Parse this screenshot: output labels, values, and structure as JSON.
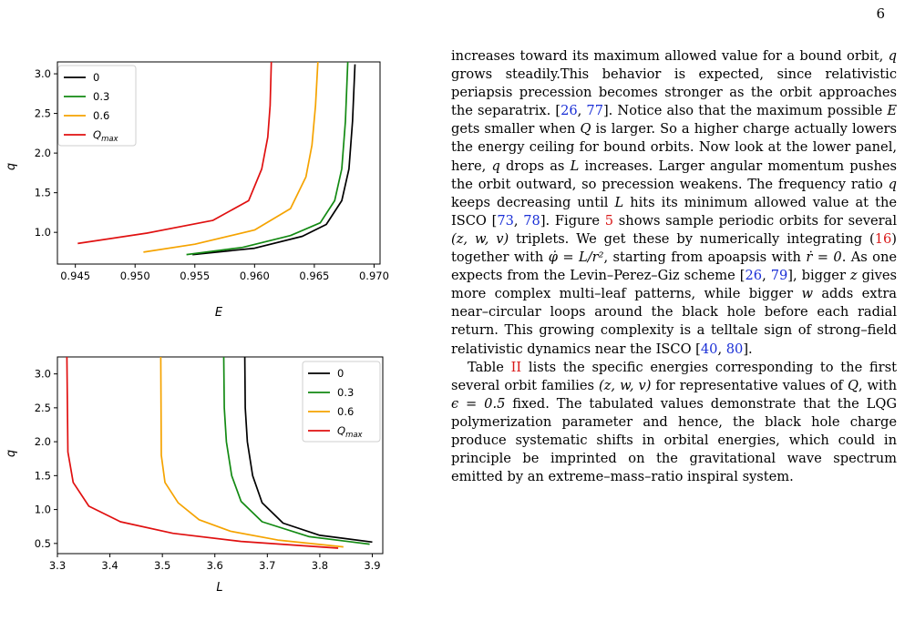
{
  "page_number": "6",
  "figures": {
    "legend_labels": [
      "0",
      "0.3",
      "0.6",
      "Q_max"
    ],
    "colors": {
      "0": "#000000",
      "0.3": "#138a13",
      "0.6": "#f5a300",
      "Q_max": "#e01010"
    }
  },
  "chart_data": [
    {
      "type": "line",
      "xlabel": "E",
      "ylabel": "q",
      "xlim": [
        0.9435,
        0.9705
      ],
      "ylim": [
        0.6,
        3.15
      ],
      "xticks": [
        0.945,
        0.95,
        0.955,
        0.96,
        0.965,
        0.97
      ],
      "xtick_labels": [
        "0.945",
        "0.950",
        "0.955",
        "0.960",
        "0.965",
        "0.970"
      ],
      "yticks": [
        1.0,
        1.5,
        2.0,
        2.5,
        3.0
      ],
      "ytick_labels": [
        "1.0",
        "1.5",
        "2.0",
        "2.5",
        "3.0"
      ],
      "legend": "top-left",
      "series": [
        {
          "name": "0",
          "color": "#000000",
          "x": [
            0.9548,
            0.96,
            0.964,
            0.966,
            0.9673,
            0.9679,
            0.9682,
            0.9684
          ],
          "y": [
            0.72,
            0.8,
            0.95,
            1.1,
            1.4,
            1.8,
            2.4,
            3.12
          ]
        },
        {
          "name": "0.3",
          "color": "#138a13",
          "x": [
            0.9543,
            0.959,
            0.963,
            0.9655,
            0.9667,
            0.9673,
            0.9676,
            0.9678
          ],
          "y": [
            0.72,
            0.81,
            0.96,
            1.12,
            1.4,
            1.8,
            2.4,
            3.15
          ]
        },
        {
          "name": "0.6",
          "color": "#f5a300",
          "x": [
            0.9507,
            0.955,
            0.96,
            0.963,
            0.9643,
            0.9648,
            0.9651,
            0.9653
          ],
          "y": [
            0.75,
            0.85,
            1.03,
            1.3,
            1.7,
            2.1,
            2.6,
            3.15
          ]
        },
        {
          "name": "Q_max",
          "color": "#e01010",
          "x": [
            0.9452,
            0.951,
            0.9565,
            0.9595,
            0.9606,
            0.9611,
            0.9613,
            0.9614
          ],
          "y": [
            0.86,
            0.99,
            1.15,
            1.4,
            1.8,
            2.2,
            2.6,
            3.15
          ]
        }
      ]
    },
    {
      "type": "line",
      "xlabel": "L",
      "ylabel": "q",
      "xlim": [
        3.3,
        3.92
      ],
      "ylim": [
        0.35,
        3.25
      ],
      "xticks": [
        3.3,
        3.4,
        3.5,
        3.6,
        3.7,
        3.8,
        3.9
      ],
      "xtick_labels": [
        "3.3",
        "3.4",
        "3.5",
        "3.6",
        "3.7",
        "3.8",
        "3.9"
      ],
      "yticks": [
        0.5,
        1.0,
        1.5,
        2.0,
        2.5,
        3.0
      ],
      "ytick_labels": [
        "0.5",
        "1.0",
        "1.5",
        "2.0",
        "2.5",
        "3.0"
      ],
      "legend": "top-right",
      "series": [
        {
          "name": "0",
          "color": "#000000",
          "x": [
            3.657,
            3.658,
            3.662,
            3.672,
            3.69,
            3.73,
            3.8,
            3.9
          ],
          "y": [
            3.25,
            2.5,
            2.0,
            1.5,
            1.1,
            0.8,
            0.62,
            0.52
          ]
        },
        {
          "name": "0.3",
          "color": "#138a13",
          "x": [
            3.617,
            3.618,
            3.622,
            3.632,
            3.65,
            3.69,
            3.78,
            3.895
          ],
          "y": [
            3.25,
            2.5,
            2.0,
            1.5,
            1.12,
            0.82,
            0.6,
            0.49
          ]
        },
        {
          "name": "0.6",
          "color": "#f5a300",
          "x": [
            3.497,
            3.498,
            3.505,
            3.53,
            3.57,
            3.63,
            3.72,
            3.845
          ],
          "y": [
            3.25,
            1.8,
            1.4,
            1.1,
            0.85,
            0.68,
            0.55,
            0.45
          ]
        },
        {
          "name": "Q_max",
          "color": "#e01010",
          "x": [
            3.318,
            3.32,
            3.33,
            3.36,
            3.42,
            3.52,
            3.65,
            3.835
          ],
          "y": [
            3.25,
            1.85,
            1.4,
            1.05,
            0.82,
            0.65,
            0.53,
            0.43
          ]
        }
      ]
    }
  ],
  "text": {
    "p1": {
      "t1": "increases toward its maximum allowed value for a bound orbit, ",
      "t2": " grows steadily.This behavior is expected, since relativistic periapsis precession becomes stronger as the orbit approaches the separatrix. [",
      "t3": ", ",
      "t4": "]. Notice also that the maximum possible ",
      "t5": " gets smaller when ",
      "t6": " is larger. So a higher charge actually lowers the energy ceiling for bound orbits. Now look at the lower panel, here, ",
      "t7": " drops as ",
      "t8": " increases. Larger angular momentum pushes the orbit outward, so precession weakens. The frequency ratio ",
      "t9": " keeps decreasing until ",
      "t10": " hits its minimum allowed value at the ISCO [",
      "t11": ", ",
      "t12": "]. Figure ",
      "t13": " shows sample periodic orbits for several ",
      "t14": " triplets. We get these by numerically integrating (",
      "t15": ") together with ",
      "t16": ", starting from apoapsis with ",
      "t17": ". As one expects from the Levin–Perez–Giz scheme [",
      "t18": ", ",
      "t19": "], bigger ",
      "t20": " gives more complex multi–leaf patterns, while bigger ",
      "t21": " adds extra near–circular loops around the black hole before each radial return. This growing complexity is a telltale sign of strong–field relativistic dynamics near the ISCO [",
      "t22": ", ",
      "t23": "]."
    },
    "p2": {
      "t1": "Table ",
      "t2": " lists the specific energies corresponding to the first several orbit families ",
      "t3": " for representative values of ",
      "t4": ", with ",
      "t5": " fixed. The tabulated values demonstrate that the LQG polymerization parameter and hence, the black hole charge produce systematic shifts in orbital energies, which could in principle be imprinted on the gravitational wave spectrum emitted by an extreme–mass–ratio inspiral system."
    },
    "math": {
      "q": "q",
      "E": "E",
      "Q": "Q",
      "L": "L",
      "z": "z",
      "w": "w",
      "triplet": "(z, w, v)",
      "phi": "φ̇ = L/r²",
      "rdot": "ṙ = 0",
      "eps": "ϵ = 0.5"
    },
    "refs": {
      "r26": "26",
      "r77": "77",
      "r73": "73",
      "r78": "78",
      "fig5": "5",
      "eq16": "16",
      "r79": "79",
      "r40": "40",
      "r80": "80",
      "tab2": "II"
    }
  }
}
